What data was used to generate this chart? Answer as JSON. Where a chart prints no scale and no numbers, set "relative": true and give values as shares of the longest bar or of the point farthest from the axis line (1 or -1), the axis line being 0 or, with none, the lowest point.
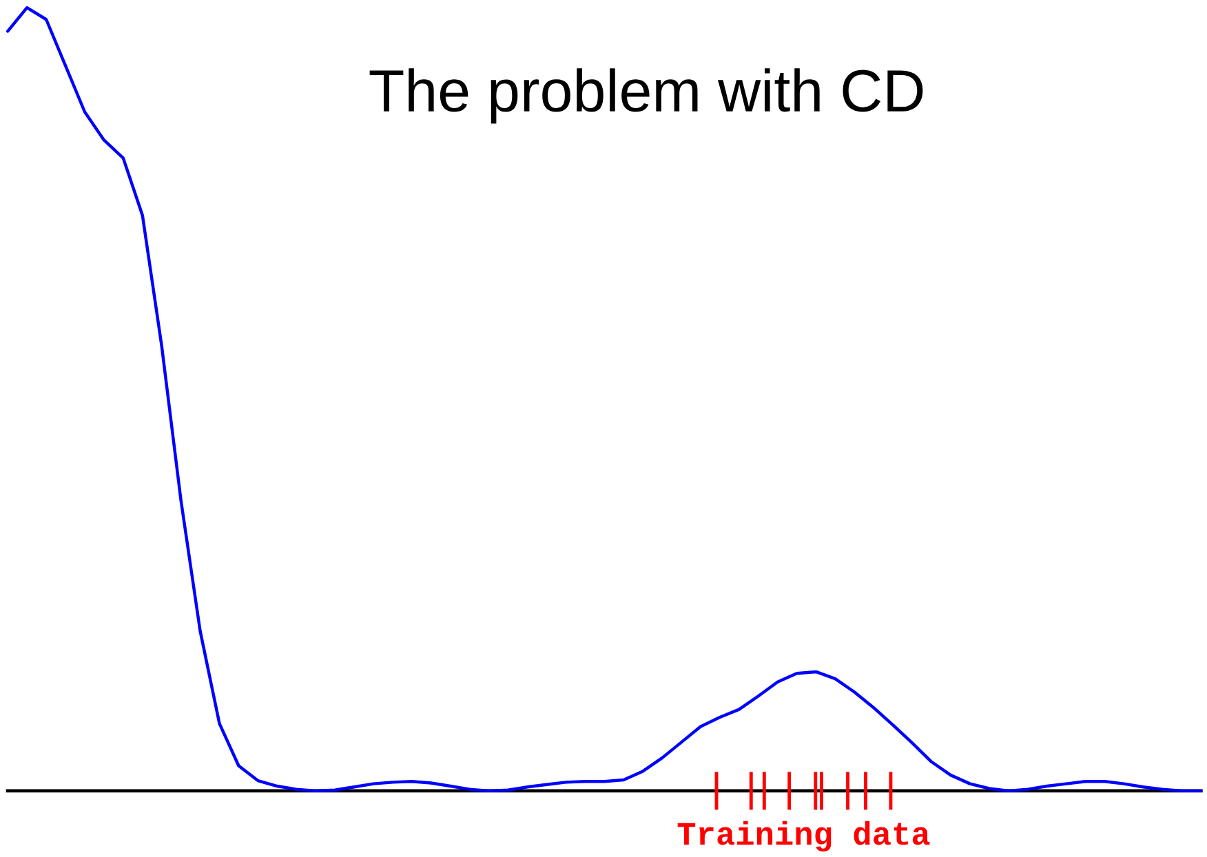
{
  "chart_data": {
    "type": "line",
    "title": "The problem with CD",
    "relative": true,
    "annotations": [
      "Training data"
    ],
    "categories": [
      null,
      null,
      null,
      null,
      null,
      null,
      null,
      null,
      null,
      null,
      null,
      null,
      null,
      null,
      null,
      null,
      null,
      null,
      null,
      null,
      null,
      null,
      null,
      null,
      null,
      null,
      null,
      null,
      null,
      null,
      null,
      null,
      null,
      null,
      null,
      null,
      null,
      null,
      null,
      null,
      null,
      null,
      null,
      null,
      null,
      null,
      null,
      null,
      null,
      null,
      null,
      null,
      null,
      null,
      null,
      null,
      null,
      null,
      null,
      null,
      null,
      null,
      null
    ],
    "series": [
      {
        "color": "#0000ff",
        "values": [
          0.97,
          1.0,
          0.985,
          0.926,
          0.867,
          0.831,
          0.808,
          0.735,
          0.568,
          0.371,
          0.204,
          0.086,
          0.032,
          0.013,
          0.006,
          0.002,
          0,
          0.001,
          0.005,
          0.009,
          0.011,
          0.012,
          0.01,
          0.006,
          0.002,
          0,
          0.001,
          0.005,
          0.008,
          0.011,
          0.012,
          0.012,
          0.014,
          0.025,
          0.042,
          0.062,
          0.082,
          0.094,
          0.104,
          0.121,
          0.139,
          0.15,
          0.152,
          0.143,
          0.126,
          0.106,
          0.084,
          0.061,
          0.037,
          0.02,
          0.009,
          0.003,
          0,
          0.002,
          0.006,
          0.009,
          0.012,
          0.012,
          0.009,
          0.005,
          0.002,
          0,
          0
        ]
      }
    ]
  }
}
